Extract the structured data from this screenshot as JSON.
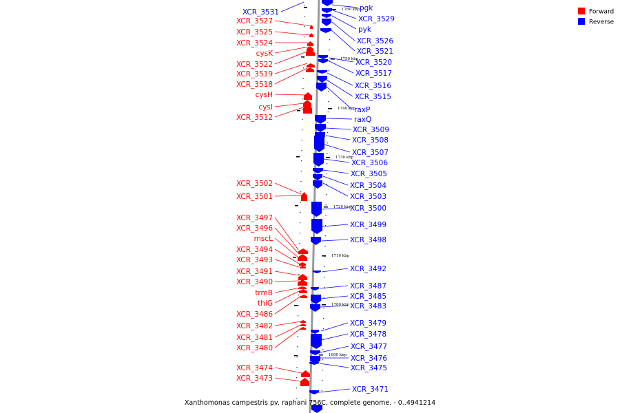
{
  "title": "Xanthomonas campestris pv. raphani 756C, complete genome. - 0..4941214",
  "legend": [
    {
      "label": "Forward",
      "color": "#ff0000"
    },
    {
      "label": "Reverse",
      "color": "#0000ff"
    }
  ],
  "kbp_markers": [
    "1760 kbp",
    "1750 kbp",
    "1740 kbp",
    "1730 kbp",
    "1720 kbp",
    "1710 kbp",
    "1700 kbp",
    "1690 kbp"
  ],
  "forward_genes": [
    "XCR_3527",
    "XCR_3525",
    "XCR_3524",
    "cysK",
    "XCR_3522",
    "XCR_3519",
    "XCR_3518",
    "cysH",
    "cysI",
    "XCR_3512",
    "XCR_3502",
    "XCR_3501",
    "XCR_3497",
    "XCR_3496",
    "mscL",
    "XCR_3494",
    "XCR_3493",
    "XCR_3491",
    "XCR_3490",
    "trmB",
    "thiG",
    "XCR_3486",
    "XCR_3482",
    "XCR_3481",
    "XCR_3480",
    "XCR_3474",
    "XCR_3473"
  ],
  "reverse_genes_left": [
    "XCR_3531"
  ],
  "reverse_genes": [
    "pgk",
    "XCR_3529",
    "pyk",
    "XCR_3526",
    "XCR_3521",
    "XCR_3520",
    "XCR_3517",
    "XCR_3516",
    "XCR_3515",
    "raxP",
    "raxQ",
    "XCR_3509",
    "XCR_3508",
    "XCR_3507",
    "XCR_3506",
    "XCR_3505",
    "XCR_3504",
    "XCR_3503",
    "XCR_3500",
    "XCR_3499",
    "XCR_3498",
    "XCR_3492",
    "XCR_3487",
    "XCR_3485",
    "XCR_3483",
    "XCR_3479",
    "XCR_3478",
    "XCR_3477",
    "XCR_3476",
    "XCR_3475",
    "XCR_3471"
  ]
}
